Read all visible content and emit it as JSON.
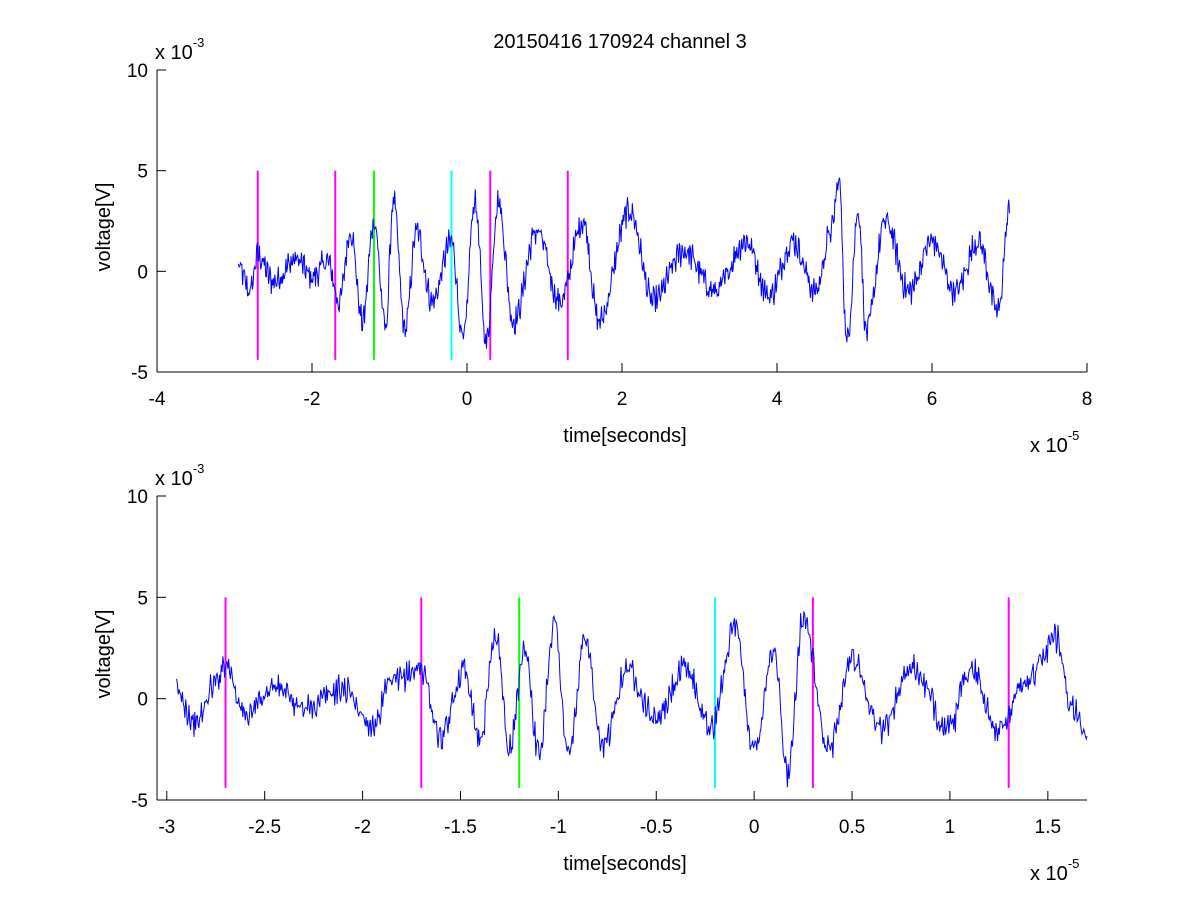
{
  "figure": {
    "title": "20150416 170924 channel 3",
    "background": "#ffffff"
  },
  "chart_data": [
    {
      "type": "line",
      "name": "full-window",
      "xlabel": "time[seconds]",
      "ylabel": "voltage[V]",
      "x_scale_label": "x 10",
      "x_scale_exponent": "-5",
      "y_scale_label": "x 10",
      "y_scale_exponent": "-3",
      "xlim": [
        -4,
        8
      ],
      "ylim": [
        -5,
        10
      ],
      "xticks": [
        -4,
        -2,
        0,
        2,
        4,
        6,
        8
      ],
      "xtick_labels": [
        "-4",
        "-2",
        "0",
        "2",
        "4",
        "6",
        "8"
      ],
      "yticks": [
        -5,
        0,
        5,
        10
      ],
      "ytick_labels": [
        "-5",
        "0",
        "5",
        "10"
      ],
      "grid": false,
      "series": [
        {
          "color": "#0000ff",
          "x_range": [
            -2.95,
            7.0
          ],
          "keypoints": [
            [
              -2.95,
              0.2
            ],
            [
              -2.8,
              -1.0
            ],
            [
              -2.7,
              0.8
            ],
            [
              -2.5,
              -0.5
            ],
            [
              -2.2,
              0.6
            ],
            [
              -2.0,
              -0.3
            ],
            [
              -1.8,
              0.5
            ],
            [
              -1.65,
              -1.5
            ],
            [
              -1.5,
              2.0
            ],
            [
              -1.35,
              -2.5
            ],
            [
              -1.2,
              2.5
            ],
            [
              -1.05,
              -2.8
            ],
            [
              -0.95,
              3.5
            ],
            [
              -0.8,
              -2.9
            ],
            [
              -0.65,
              2.0
            ],
            [
              -0.45,
              -1.5
            ],
            [
              -0.2,
              1.5
            ],
            [
              -0.05,
              -3.5
            ],
            [
              0.1,
              3.5
            ],
            [
              0.25,
              -3.5
            ],
            [
              0.4,
              3.5
            ],
            [
              0.6,
              -2.5
            ],
            [
              0.9,
              2.0
            ],
            [
              1.2,
              -1.5
            ],
            [
              1.5,
              2.5
            ],
            [
              1.7,
              -2.5
            ],
            [
              2.1,
              3.0
            ],
            [
              2.4,
              -1.5
            ],
            [
              2.8,
              1.0
            ],
            [
              3.2,
              -1.0
            ],
            [
              3.6,
              1.5
            ],
            [
              3.9,
              -1.2
            ],
            [
              4.2,
              1.5
            ],
            [
              4.5,
              -1.0
            ],
            [
              4.7,
              2.0
            ],
            [
              4.8,
              4.5
            ],
            [
              4.9,
              -3.5
            ],
            [
              5.05,
              3.0
            ],
            [
              5.15,
              -3.0
            ],
            [
              5.4,
              2.5
            ],
            [
              5.7,
              -1.0
            ],
            [
              6.0,
              1.5
            ],
            [
              6.3,
              -1.0
            ],
            [
              6.6,
              1.5
            ],
            [
              6.85,
              -2.0
            ],
            [
              7.0,
              3.0
            ]
          ]
        }
      ],
      "event_markers": [
        {
          "x": -2.7,
          "color": "#ff00ff",
          "y_range": [
            -4.4,
            5.0
          ]
        },
        {
          "x": -1.7,
          "color": "#ff00ff",
          "y_range": [
            -4.4,
            5.0
          ]
        },
        {
          "x": -1.2,
          "color": "#00ff00",
          "y_range": [
            -4.4,
            5.0
          ]
        },
        {
          "x": -0.2,
          "color": "#00ffff",
          "y_range": [
            -4.4,
            5.0
          ]
        },
        {
          "x": 0.3,
          "color": "#ff00ff",
          "y_range": [
            -4.4,
            5.0
          ]
        },
        {
          "x": 1.3,
          "color": "#ff00ff",
          "y_range": [
            -4.4,
            5.0
          ]
        }
      ]
    },
    {
      "type": "line",
      "name": "zoomed-window",
      "xlabel": "time[seconds]",
      "ylabel": "voltage[V]",
      "x_scale_label": "x 10",
      "x_scale_exponent": "-5",
      "y_scale_label": "x 10",
      "y_scale_exponent": "-3",
      "xlim": [
        -3.05,
        1.7
      ],
      "ylim": [
        -5,
        10
      ],
      "xticks": [
        -3,
        -2.5,
        -2,
        -1.5,
        -1,
        -0.5,
        0,
        0.5,
        1,
        1.5
      ],
      "xtick_labels": [
        "-3",
        "-2.5",
        "-2",
        "-1.5",
        "-1",
        "-0.5",
        "0",
        "0.5",
        "1",
        "1.5"
      ],
      "yticks": [
        -5,
        0,
        5,
        10
      ],
      "ytick_labels": [
        "-5",
        "0",
        "5",
        "10"
      ],
      "grid": false,
      "series": [
        {
          "color": "#0000ff",
          "x_range": [
            -2.95,
            1.7
          ],
          "keypoints": [
            [
              -2.95,
              0.3
            ],
            [
              -2.85,
              -1.2
            ],
            [
              -2.75,
              0.8
            ],
            [
              -2.7,
              1.8
            ],
            [
              -2.6,
              -0.8
            ],
            [
              -2.45,
              0.6
            ],
            [
              -2.3,
              -0.5
            ],
            [
              -2.1,
              0.5
            ],
            [
              -1.95,
              -1.3
            ],
            [
              -1.85,
              0.8
            ],
            [
              -1.7,
              1.5
            ],
            [
              -1.6,
              -2.0
            ],
            [
              -1.48,
              1.5
            ],
            [
              -1.4,
              -2.0
            ],
            [
              -1.32,
              3.2
            ],
            [
              -1.25,
              -2.5
            ],
            [
              -1.17,
              2.5
            ],
            [
              -1.1,
              -2.8
            ],
            [
              -1.02,
              3.8
            ],
            [
              -0.95,
              -2.8
            ],
            [
              -0.86,
              3.0
            ],
            [
              -0.78,
              -2.5
            ],
            [
              -0.65,
              1.5
            ],
            [
              -0.5,
              -1.0
            ],
            [
              -0.35,
              1.5
            ],
            [
              -0.22,
              -1.5
            ],
            [
              -0.1,
              3.5
            ],
            [
              0.0,
              -2.5
            ],
            [
              0.1,
              2.5
            ],
            [
              0.17,
              -3.8
            ],
            [
              0.25,
              4.0
            ],
            [
              0.38,
              -2.5
            ],
            [
              0.5,
              2.0
            ],
            [
              0.65,
              -1.5
            ],
            [
              0.8,
              1.5
            ],
            [
              1.0,
              -1.5
            ],
            [
              1.1,
              1.5
            ],
            [
              1.25,
              -1.5
            ],
            [
              1.4,
              1.0
            ],
            [
              1.55,
              3.0
            ],
            [
              1.62,
              -0.5
            ],
            [
              1.7,
              -1.8
            ]
          ]
        }
      ],
      "event_markers": [
        {
          "x": -2.7,
          "color": "#ff00ff",
          "y_range": [
            -4.4,
            5.0
          ]
        },
        {
          "x": -1.7,
          "color": "#ff00ff",
          "y_range": [
            -4.4,
            5.0
          ]
        },
        {
          "x": -1.2,
          "color": "#00ff00",
          "y_range": [
            -4.4,
            5.0
          ]
        },
        {
          "x": -0.2,
          "color": "#00ffff",
          "y_range": [
            -4.4,
            5.0
          ]
        },
        {
          "x": 0.3,
          "color": "#ff00ff",
          "y_range": [
            -4.4,
            5.0
          ]
        },
        {
          "x": 1.3,
          "color": "#ff00ff",
          "y_range": [
            -4.4,
            5.0
          ]
        }
      ]
    }
  ]
}
